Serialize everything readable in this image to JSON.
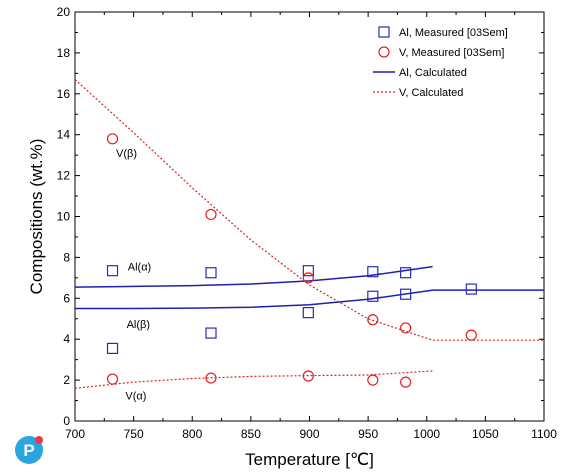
{
  "chart_data": {
    "type": "scatter",
    "xlabel": "Temperature [℃]",
    "ylabel": "Compositions (wt.%)",
    "xlim": [
      700,
      1100
    ],
    "ylim": [
      0,
      20
    ],
    "xticks": [
      "700",
      "750",
      "800",
      "850",
      "900",
      "950",
      "1000",
      "1050",
      "1100"
    ],
    "yticks": [
      "0",
      "2",
      "4",
      "6",
      "8",
      "10",
      "12",
      "14",
      "16",
      "18",
      "20"
    ],
    "grid": false,
    "legend_position": "top-right",
    "series": [
      {
        "name": "Al, Measured [03Sem]",
        "kind": "marker",
        "marker": "square",
        "color": "#2b2bb8",
        "points": [
          {
            "x": 732,
            "y": 7.35
          },
          {
            "x": 732,
            "y": 3.55
          },
          {
            "x": 816,
            "y": 7.25
          },
          {
            "x": 816,
            "y": 4.3
          },
          {
            "x": 899,
            "y": 7.35
          },
          {
            "x": 899,
            "y": 5.3
          },
          {
            "x": 954,
            "y": 7.3
          },
          {
            "x": 954,
            "y": 6.1
          },
          {
            "x": 982,
            "y": 7.25
          },
          {
            "x": 982,
            "y": 6.2
          },
          {
            "x": 1038,
            "y": 6.45
          }
        ]
      },
      {
        "name": "V, Measured [03Sem]",
        "kind": "marker",
        "marker": "circle",
        "color": "#e02020",
        "points": [
          {
            "x": 732,
            "y": 13.8
          },
          {
            "x": 732,
            "y": 2.05
          },
          {
            "x": 816,
            "y": 10.1
          },
          {
            "x": 816,
            "y": 2.1
          },
          {
            "x": 899,
            "y": 7.0
          },
          {
            "x": 899,
            "y": 2.2
          },
          {
            "x": 954,
            "y": 4.95
          },
          {
            "x": 954,
            "y": 2.0
          },
          {
            "x": 982,
            "y": 4.55
          },
          {
            "x": 982,
            "y": 1.9
          },
          {
            "x": 1038,
            "y": 4.2
          }
        ]
      },
      {
        "name": "Al, Calculated",
        "kind": "line",
        "style": "solid",
        "color": "#1f1fb0",
        "lines": [
          [
            {
              "x": 700,
              "y": 6.55
            },
            {
              "x": 750,
              "y": 6.58
            },
            {
              "x": 800,
              "y": 6.62
            },
            {
              "x": 850,
              "y": 6.7
            },
            {
              "x": 900,
              "y": 6.85
            },
            {
              "x": 950,
              "y": 7.1
            },
            {
              "x": 1005,
              "y": 7.55
            }
          ],
          [
            {
              "x": 700,
              "y": 5.5
            },
            {
              "x": 750,
              "y": 5.5
            },
            {
              "x": 800,
              "y": 5.52
            },
            {
              "x": 850,
              "y": 5.56
            },
            {
              "x": 900,
              "y": 5.68
            },
            {
              "x": 950,
              "y": 5.95
            },
            {
              "x": 1005,
              "y": 6.4
            },
            {
              "x": 1100,
              "y": 6.4
            }
          ]
        ]
      },
      {
        "name": "V, Calculated",
        "kind": "line",
        "style": "dotted",
        "color": "#e02020",
        "lines": [
          [
            {
              "x": 700,
              "y": 16.7
            },
            {
              "x": 750,
              "y": 14.1
            },
            {
              "x": 800,
              "y": 11.4
            },
            {
              "x": 850,
              "y": 8.85
            },
            {
              "x": 900,
              "y": 6.65
            },
            {
              "x": 950,
              "y": 5.0
            },
            {
              "x": 1005,
              "y": 3.95
            },
            {
              "x": 1100,
              "y": 3.95
            }
          ],
          [
            {
              "x": 700,
              "y": 1.6
            },
            {
              "x": 750,
              "y": 1.9
            },
            {
              "x": 800,
              "y": 2.08
            },
            {
              "x": 850,
              "y": 2.18
            },
            {
              "x": 900,
              "y": 2.22
            },
            {
              "x": 950,
              "y": 2.25
            },
            {
              "x": 1005,
              "y": 2.45
            }
          ]
        ]
      }
    ],
    "annotations": [
      {
        "text": "V(β)",
        "x": 735,
        "y": 12.9
      },
      {
        "text": "Al(α)",
        "x": 745,
        "y": 7.35
      },
      {
        "text": "Al(β)",
        "x": 744,
        "y": 4.55
      },
      {
        "text": "V(α)",
        "x": 743,
        "y": 1.05
      }
    ]
  },
  "logo": {
    "letter": "P",
    "colors": {
      "primary": "#2aa6de",
      "secondary": "#e83a4e"
    }
  }
}
